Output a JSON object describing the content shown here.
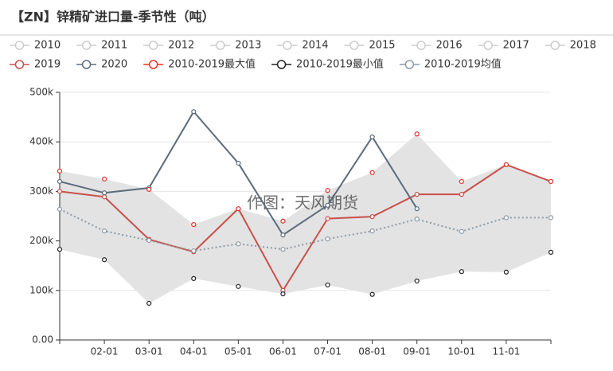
{
  "chart_data": {
    "type": "line",
    "title": "【ZN】锌精矿进口量-季节性（吨）",
    "watermark": "作图：天风期货",
    "categories": [
      null,
      "02-01",
      "03-01",
      "04-01",
      "05-01",
      "06-01",
      "07-01",
      "08-01",
      "09-01",
      "10-01",
      "11-01",
      null
    ],
    "ylim": [
      0,
      500000
    ],
    "yticks": [
      {
        "value": 0,
        "label": "0.00"
      },
      {
        "value": 100000,
        "label": "100k"
      },
      {
        "value": 200000,
        "label": "200k"
      },
      {
        "value": 300000,
        "label": "300k"
      },
      {
        "value": 400000,
        "label": "400k"
      },
      {
        "value": 500000,
        "label": "500k"
      }
    ],
    "grid": true,
    "series": [
      {
        "name": "2010",
        "color": "#cccccc",
        "selected": false
      },
      {
        "name": "2011",
        "color": "#cccccc",
        "selected": false
      },
      {
        "name": "2012",
        "color": "#cccccc",
        "selected": false
      },
      {
        "name": "2013",
        "color": "#cccccc",
        "selected": false
      },
      {
        "name": "2014",
        "color": "#cccccc",
        "selected": false
      },
      {
        "name": "2015",
        "color": "#cccccc",
        "selected": false
      },
      {
        "name": "2016",
        "color": "#cccccc",
        "selected": false
      },
      {
        "name": "2017",
        "color": "#cccccc",
        "selected": false
      },
      {
        "name": "2018",
        "color": "#cccccc",
        "selected": false
      },
      {
        "name": "2019",
        "color": "#c9504a",
        "style": "line",
        "values": [
          300000,
          289000,
          203000,
          178000,
          265000,
          100000,
          245000,
          249000,
          294000,
          294000,
          354000,
          320000
        ]
      },
      {
        "name": "2020",
        "color": "#5b6b7c",
        "style": "line",
        "values": [
          320000,
          297000,
          307000,
          461000,
          357000,
          212000,
          272000,
          410000,
          265000,
          null,
          null,
          null
        ]
      },
      {
        "name": "2010-2019最大值",
        "color": "#e5302c",
        "style": "points",
        "values": [
          341000,
          325000,
          304000,
          233000,
          265000,
          240000,
          302000,
          338000,
          416000,
          320000,
          354000,
          320000
        ]
      },
      {
        "name": "2010-2019最小值",
        "color": "#222222",
        "style": "points",
        "values": [
          183000,
          162000,
          74000,
          124000,
          108000,
          93000,
          111000,
          92000,
          119000,
          138000,
          137000,
          177000
        ]
      },
      {
        "name": "2010-2019均值",
        "color": "#8e9aa5",
        "style": "dotted",
        "values": [
          264000,
          220000,
          201000,
          180000,
          194000,
          183000,
          204000,
          220000,
          244000,
          219000,
          247000,
          247000
        ]
      }
    ]
  }
}
